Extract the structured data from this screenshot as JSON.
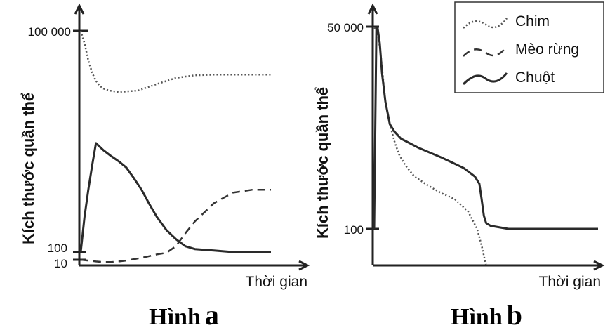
{
  "chart_data": [
    {
      "type": "line",
      "caption": {
        "text": "Hình",
        "letter": "a"
      },
      "xlabel": "Thời gian",
      "ylabel": "Kích thước quần thể",
      "y_ticks": [
        "100 000",
        "100",
        "10"
      ],
      "series": [
        {
          "name": "Chim",
          "style": "dotted",
          "x": [
            0,
            2,
            4,
            6,
            8,
            10,
            12,
            15,
            20,
            30,
            40,
            50,
            60,
            70,
            80,
            90,
            100
          ],
          "y": [
            100000,
            68000,
            40000,
            27000,
            21000,
            18000,
            16500,
            15500,
            14800,
            15500,
            19000,
            23000,
            25000,
            25500,
            25500,
            25500,
            25500
          ]
        },
        {
          "name": "Mèo rừng",
          "style": "dashed",
          "x": [
            0,
            4,
            8,
            12,
            16,
            20,
            24,
            28,
            32,
            36,
            40,
            45,
            50,
            55,
            60,
            70,
            80,
            90,
            100
          ],
          "y": [
            10,
            8,
            6,
            5,
            5,
            6,
            8,
            12,
            18,
            30,
            50,
            80,
            120,
            180,
            260,
            460,
            640,
            700,
            700
          ]
        },
        {
          "name": "Chuột",
          "style": "solid",
          "x": [
            0,
            2,
            4,
            6,
            8,
            12,
            16,
            20,
            24,
            28,
            32,
            36,
            40,
            45,
            50,
            55,
            60,
            70,
            80,
            90,
            100
          ],
          "y": [
            100,
            300,
            700,
            1500,
            3000,
            2400,
            2000,
            1700,
            1400,
            1000,
            700,
            450,
            300,
            200,
            150,
            120,
            110,
            105,
            100,
            100,
            100
          ]
        }
      ]
    },
    {
      "type": "line",
      "caption": {
        "text": "Hình",
        "letter": "b"
      },
      "xlabel": "Thời gian",
      "ylabel": "Kích thước quần thể",
      "y_ticks": [
        "50 000",
        "100"
      ],
      "series": [
        {
          "name": "Chim",
          "style": "dotted",
          "x": [
            0,
            1,
            2,
            3,
            4,
            5,
            7,
            9,
            11,
            14,
            18,
            24,
            30,
            36,
            42,
            46,
            48,
            50
          ],
          "y": [
            48000,
            46000,
            35000,
            20000,
            10000,
            5000,
            2500,
            1500,
            1000,
            700,
            500,
            380,
            300,
            250,
            170,
            100,
            60,
            30
          ]
        },
        {
          "name": "Chuột",
          "style": "solid",
          "x": [
            0,
            1,
            1.5,
            2.5,
            3.5,
            5,
            7,
            9,
            12,
            20,
            30,
            40,
            45,
            47,
            48,
            49,
            50,
            52,
            60,
            70,
            80,
            90,
            100
          ],
          "y": [
            100,
            48000,
            49000,
            30000,
            12000,
            5000,
            2500,
            2000,
            1600,
            1200,
            900,
            650,
            500,
            400,
            250,
            150,
            120,
            110,
            100,
            100,
            100,
            100,
            100
          ]
        }
      ]
    }
  ],
  "legend": {
    "position": "top-right",
    "items": [
      {
        "label": "Chim",
        "style": "dotted"
      },
      {
        "label": "Mèo rừng",
        "style": "dashed"
      },
      {
        "label": "Chuột",
        "style": "solid"
      }
    ]
  }
}
